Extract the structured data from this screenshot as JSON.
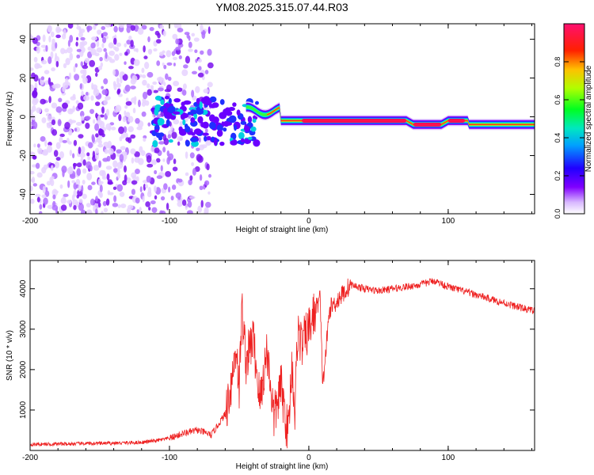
{
  "title": "YM08.2025.315.07.44.R03",
  "chart_data": [
    {
      "type": "heatmap",
      "title": "YM08.2025.315.07.44.R03",
      "xlabel": "Height of straight line (km)",
      "ylabel": "Frequency (Hz)",
      "xlim": [
        -200,
        162
      ],
      "ylim": [
        -50,
        48
      ],
      "xticks": [
        -200,
        -100,
        0,
        100
      ],
      "xtick_labels": [
        "-200",
        "-100",
        "0",
        "100"
      ],
      "yticks": [
        -40,
        -20,
        0,
        20,
        40
      ],
      "ytick_labels": [
        "-40",
        "-20",
        "0",
        "20",
        "40"
      ],
      "colorbar": {
        "label": "Normalized spectral amplitude",
        "range": [
          0,
          1
        ],
        "ticks": [
          0.0,
          0.2,
          0.4,
          0.6,
          0.8
        ],
        "tick_labels": [
          "0.0",
          "0.2",
          "0.4",
          "0.6",
          "0.8"
        ],
        "colormap": [
          "#ffffff",
          "#c080ff",
          "#8000ff",
          "#0000ff",
          "#00e0ff",
          "#00ff40",
          "#c0ff00",
          "#ffc000",
          "#ff0000",
          "#ff2080"
        ]
      },
      "description_points": [
        {
          "x": -200,
          "y": 0,
          "note": "scattered weak blobs"
        },
        {
          "x": -40,
          "y": 5,
          "note": "band begins"
        },
        {
          "x": 60,
          "y": -2,
          "note": "strong red band"
        },
        {
          "x": 162,
          "y": -4,
          "note": "band continues"
        }
      ]
    },
    {
      "type": "line",
      "xlabel": "Height of straight line (km)",
      "ylabel": "SNR (10 * v/v)",
      "xlim": [
        -200,
        162
      ],
      "ylim": [
        0,
        4700
      ],
      "xticks": [
        -200,
        -100,
        0,
        100
      ],
      "xtick_labels": [
        "-200",
        "-100",
        "0",
        "100"
      ],
      "yticks": [
        1000,
        2000,
        3000,
        4000
      ],
      "ytick_labels": [
        "1000",
        "2000",
        "3000",
        "4000"
      ],
      "series": [
        {
          "name": "SNR",
          "color": "#ee2020",
          "x": [
            -200,
            -180,
            -160,
            -140,
            -120,
            -110,
            -100,
            -90,
            -80,
            -75,
            -70,
            -60,
            -55,
            -52,
            -50,
            -48,
            -45,
            -40,
            -35,
            -30,
            -25,
            -20,
            -15,
            -12,
            -10,
            -8,
            -5,
            0,
            5,
            8,
            10,
            15,
            20,
            25,
            30,
            40,
            50,
            60,
            70,
            80,
            90,
            100,
            110,
            120,
            130,
            140,
            150,
            162
          ],
          "y": [
            150,
            160,
            170,
            180,
            200,
            240,
            300,
            420,
            500,
            450,
            380,
            900,
            1800,
            2600,
            1500,
            3500,
            2200,
            2800,
            1200,
            2500,
            800,
            1600,
            400,
            2200,
            900,
            3000,
            2600,
            3000,
            3500,
            3800,
            1600,
            3500,
            3700,
            3900,
            4100,
            4000,
            3950,
            4000,
            4050,
            4100,
            4200,
            4050,
            3950,
            3850,
            3750,
            3650,
            3550,
            3450
          ]
        }
      ]
    }
  ]
}
